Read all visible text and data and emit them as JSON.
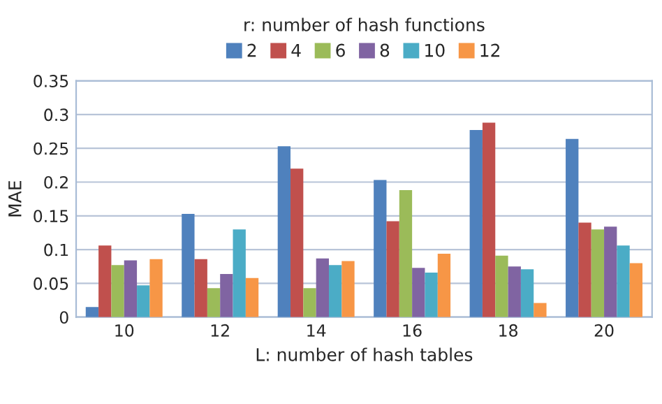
{
  "chart_data": {
    "type": "bar",
    "xlabel": "L: number of hash tables",
    "ylabel": "MAE",
    "legend_title": "r: number of hash functions",
    "categories": [
      "10",
      "12",
      "14",
      "16",
      "18",
      "20"
    ],
    "series": [
      {
        "name": "2",
        "color": "#4f81bd",
        "values": [
          0.015,
          0.153,
          0.253,
          0.203,
          0.277,
          0.264
        ]
      },
      {
        "name": "4",
        "color": "#c0504d",
        "values": [
          0.106,
          0.086,
          0.22,
          0.142,
          0.288,
          0.14
        ]
      },
      {
        "name": "6",
        "color": "#9bbb59",
        "values": [
          0.077,
          0.043,
          0.043,
          0.188,
          0.091,
          0.13
        ]
      },
      {
        "name": "8",
        "color": "#8064a2",
        "values": [
          0.084,
          0.064,
          0.087,
          0.073,
          0.075,
          0.134
        ]
      },
      {
        "name": "10",
        "color": "#4bacc6",
        "values": [
          0.047,
          0.13,
          0.077,
          0.066,
          0.071,
          0.106
        ]
      },
      {
        "name": "12",
        "color": "#f79646",
        "values": [
          0.086,
          0.058,
          0.083,
          0.094,
          0.021,
          0.08
        ]
      }
    ],
    "ylim": [
      0,
      0.35
    ],
    "yticks": [
      0,
      {
        "value": 0.05,
        "label": "0.05"
      },
      {
        "value": 0.1,
        "label": "0.1"
      },
      {
        "value": 0.15,
        "label": "0.15"
      },
      {
        "value": 0.2,
        "label": "0.2"
      },
      {
        "value": 0.25,
        "label": "0.25"
      },
      {
        "value": 0.3,
        "label": "0.3"
      },
      {
        "value": 0.35,
        "label": "0.35"
      }
    ],
    "grid": "y",
    "legend": "top"
  }
}
